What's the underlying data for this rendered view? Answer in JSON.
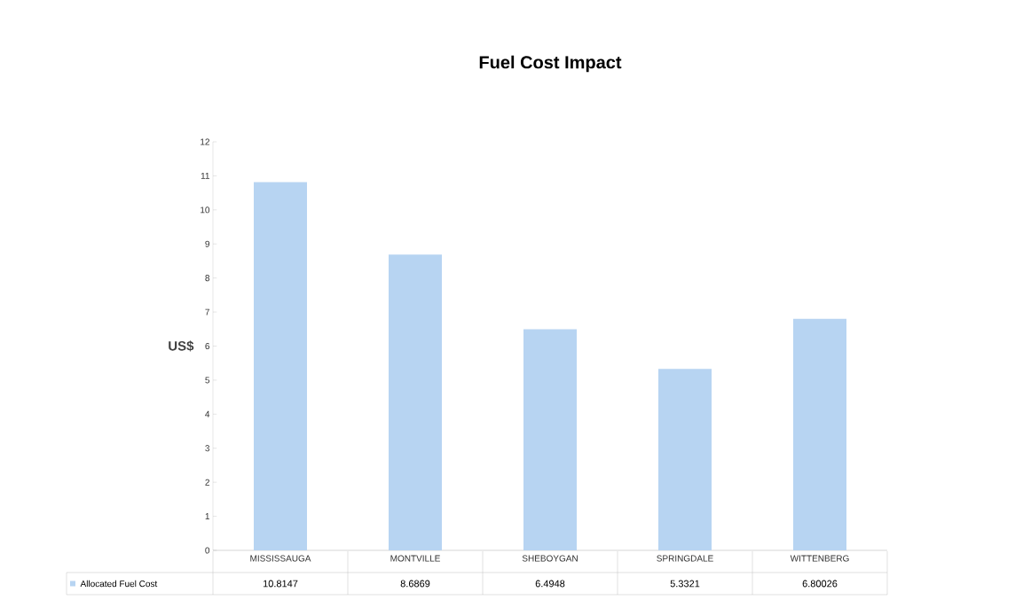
{
  "chart_data": {
    "type": "bar",
    "title": "Fuel Cost Impact",
    "ylabel": "US$",
    "categories": [
      "MISSISSAUGA",
      "MONTVILLE",
      "SHEBOYGAN",
      "SPRINGDALE",
      "WITTENBERG"
    ],
    "series": [
      {
        "name": "Allocated Fuel Cost",
        "color": "#b7d4f2",
        "values": [
          10.8147,
          8.6869,
          6.4948,
          5.3321,
          6.80026
        ]
      }
    ],
    "ylim": [
      0,
      12
    ],
    "yticks": [
      0,
      1,
      2,
      3,
      4,
      5,
      6,
      7,
      8,
      9,
      10,
      11,
      12
    ],
    "data_labels": true
  }
}
